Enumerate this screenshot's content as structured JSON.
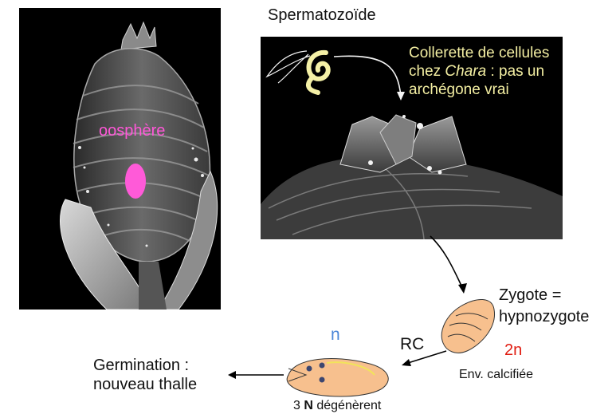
{
  "labels": {
    "spermatozoide": "Spermatozoïde",
    "collerette_before": "Collerette de cellules",
    "collerette_chez": "chez ",
    "collerette_genus": "Chara",
    "collerette_after": " : pas un",
    "collerette_line3": "archégone vrai",
    "oosphere": "oosphère",
    "zygote_line1": "Zygote =",
    "zygote_line2": "hypnozygote",
    "ploidy_2n": "2n",
    "env_calcifiee": "Env. calcifiée",
    "rc": "RC",
    "ploidy_n": "n",
    "three_n_prefix": "3 ",
    "three_n_bold": "N",
    "three_n_suffix": " dégénèrent",
    "germination_line1": "Germination :",
    "germination_line2": "nouveau thalle"
  },
  "colors": {
    "oosphere_label": "#ff57d8",
    "oosphere_fill": "#ff5ad8",
    "collerette_label": "#f3eea2",
    "ploidy_2n": "#e01b10",
    "ploidy_n": "#4a86d8",
    "zygote_fill": "#f7c08e",
    "photo_background": "#000000"
  }
}
